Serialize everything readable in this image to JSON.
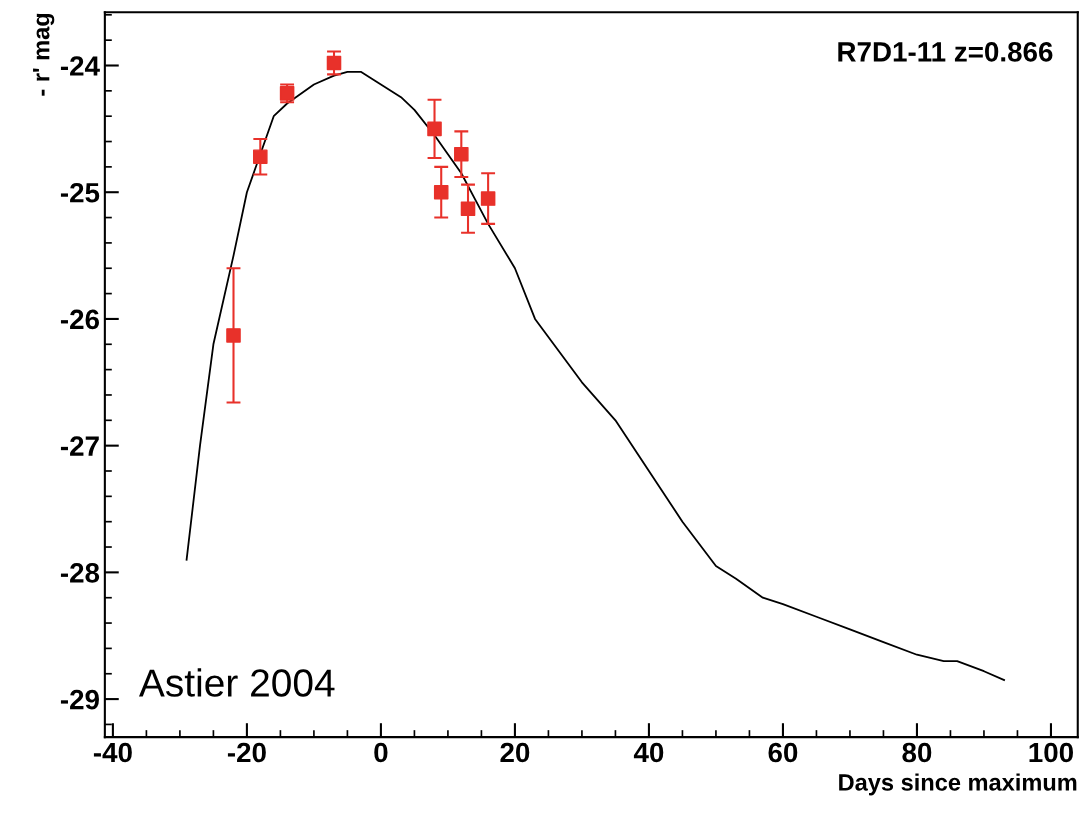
{
  "chart_data": {
    "type": "scatter",
    "ylabel": "- r' mag",
    "xlabel": "Days since maximum",
    "annotations": [
      "R7D1-11 z=0.866",
      "Astier 2004"
    ],
    "xlim": [
      -41.2,
      104
    ],
    "ylim": [
      -29.3,
      -23.58
    ],
    "xticks": [
      -40,
      -20,
      0,
      20,
      40,
      60,
      80,
      100
    ],
    "yticks": [
      -29,
      -28,
      -27,
      -26,
      -25,
      -24
    ],
    "grid": false,
    "legend": false,
    "series": [
      {
        "color": "#e8312a",
        "marker": "square",
        "x": [
          -22,
          -18,
          -14,
          -7,
          8,
          9,
          12,
          13,
          16
        ],
        "values": [
          -26.13,
          -24.72,
          -24.22,
          -23.98,
          -24.5,
          -25.0,
          -24.7,
          -25.13,
          -25.05
        ],
        "errors": [
          0.53,
          0.14,
          0.07,
          0.09,
          0.23,
          0.2,
          0.18,
          0.19,
          0.2
        ]
      },
      {
        "type": "line",
        "color": "#000000",
        "marker": "none",
        "line_style": "solid",
        "x": [
          -29,
          -27,
          -25,
          -22,
          -20,
          -18,
          -16,
          -14,
          -10,
          -7,
          -5,
          -3,
          0,
          3,
          5,
          8,
          10,
          12,
          14,
          16,
          20,
          23,
          30,
          35,
          40,
          45,
          50,
          53,
          57,
          60,
          65,
          70,
          75,
          80,
          84,
          86,
          90,
          93
        ],
        "values": [
          -27.9,
          -27.0,
          -26.2,
          -25.5,
          -25.0,
          -24.7,
          -24.4,
          -24.3,
          -24.15,
          -24.08,
          -24.05,
          -24.05,
          -24.15,
          -24.25,
          -24.35,
          -24.55,
          -24.7,
          -24.85,
          -25.05,
          -25.25,
          -25.6,
          -26.0,
          -26.5,
          -26.8,
          -27.2,
          -27.6,
          -27.95,
          -28.05,
          -28.2,
          -28.25,
          -28.35,
          -28.45,
          -28.55,
          -28.65,
          -28.7,
          -28.7,
          -28.78,
          -28.85
        ]
      }
    ]
  }
}
